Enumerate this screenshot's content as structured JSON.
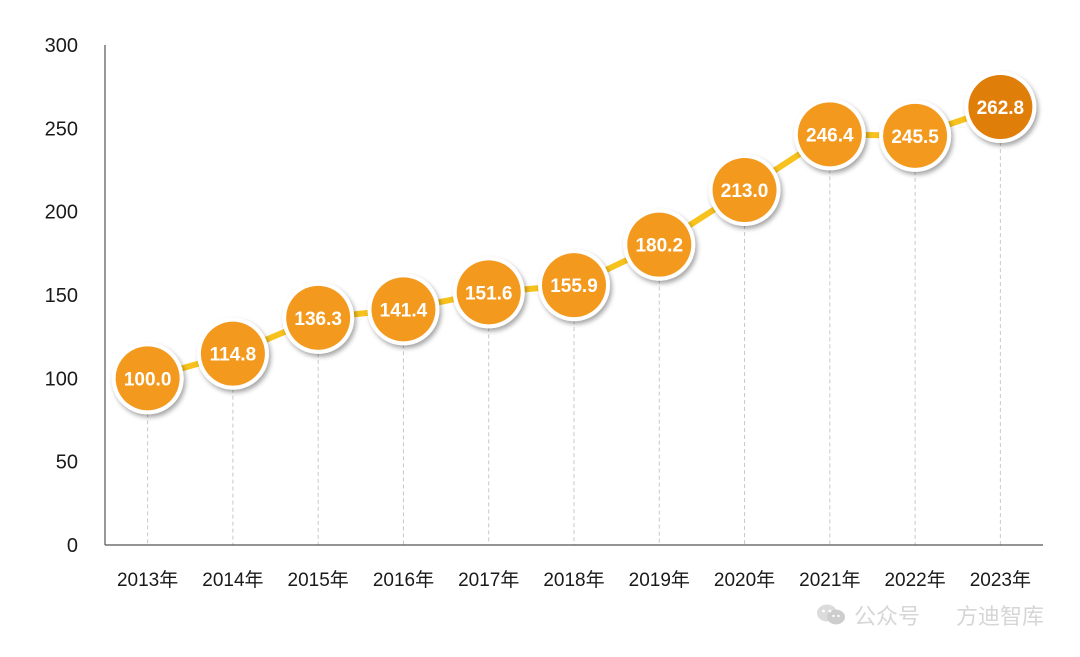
{
  "chart_data": {
    "type": "line",
    "categories": [
      "2013年",
      "2014年",
      "2015年",
      "2016年",
      "2017年",
      "2018年",
      "2019年",
      "2020年",
      "2021年",
      "2022年",
      "2023年"
    ],
    "values": [
      100.0,
      114.8,
      136.3,
      141.4,
      151.6,
      155.9,
      180.2,
      213.0,
      246.4,
      245.5,
      262.8
    ],
    "data_labels": [
      "100.0",
      "114.8",
      "136.3",
      "141.4",
      "151.6",
      "155.9",
      "180.2",
      "213.0",
      "246.4",
      "245.5",
      "262.8"
    ],
    "yticks": [
      0,
      50,
      100,
      150,
      200,
      250,
      300
    ],
    "ylim": [
      0,
      300
    ],
    "title": "",
    "xlabel": "",
    "ylabel": "",
    "grid": "vertical-dashed",
    "legend": "none",
    "colors": {
      "line": "#F7C21E",
      "marker": "#F39A1E",
      "marker_last": "#E07E0A",
      "marker_ring": "#ffffff",
      "axis": "#555555",
      "grid": "#c8c8c8"
    }
  },
  "watermark": {
    "icon": "wechat-icon",
    "left_text": "公众号",
    "right_text": "方迪智库"
  }
}
